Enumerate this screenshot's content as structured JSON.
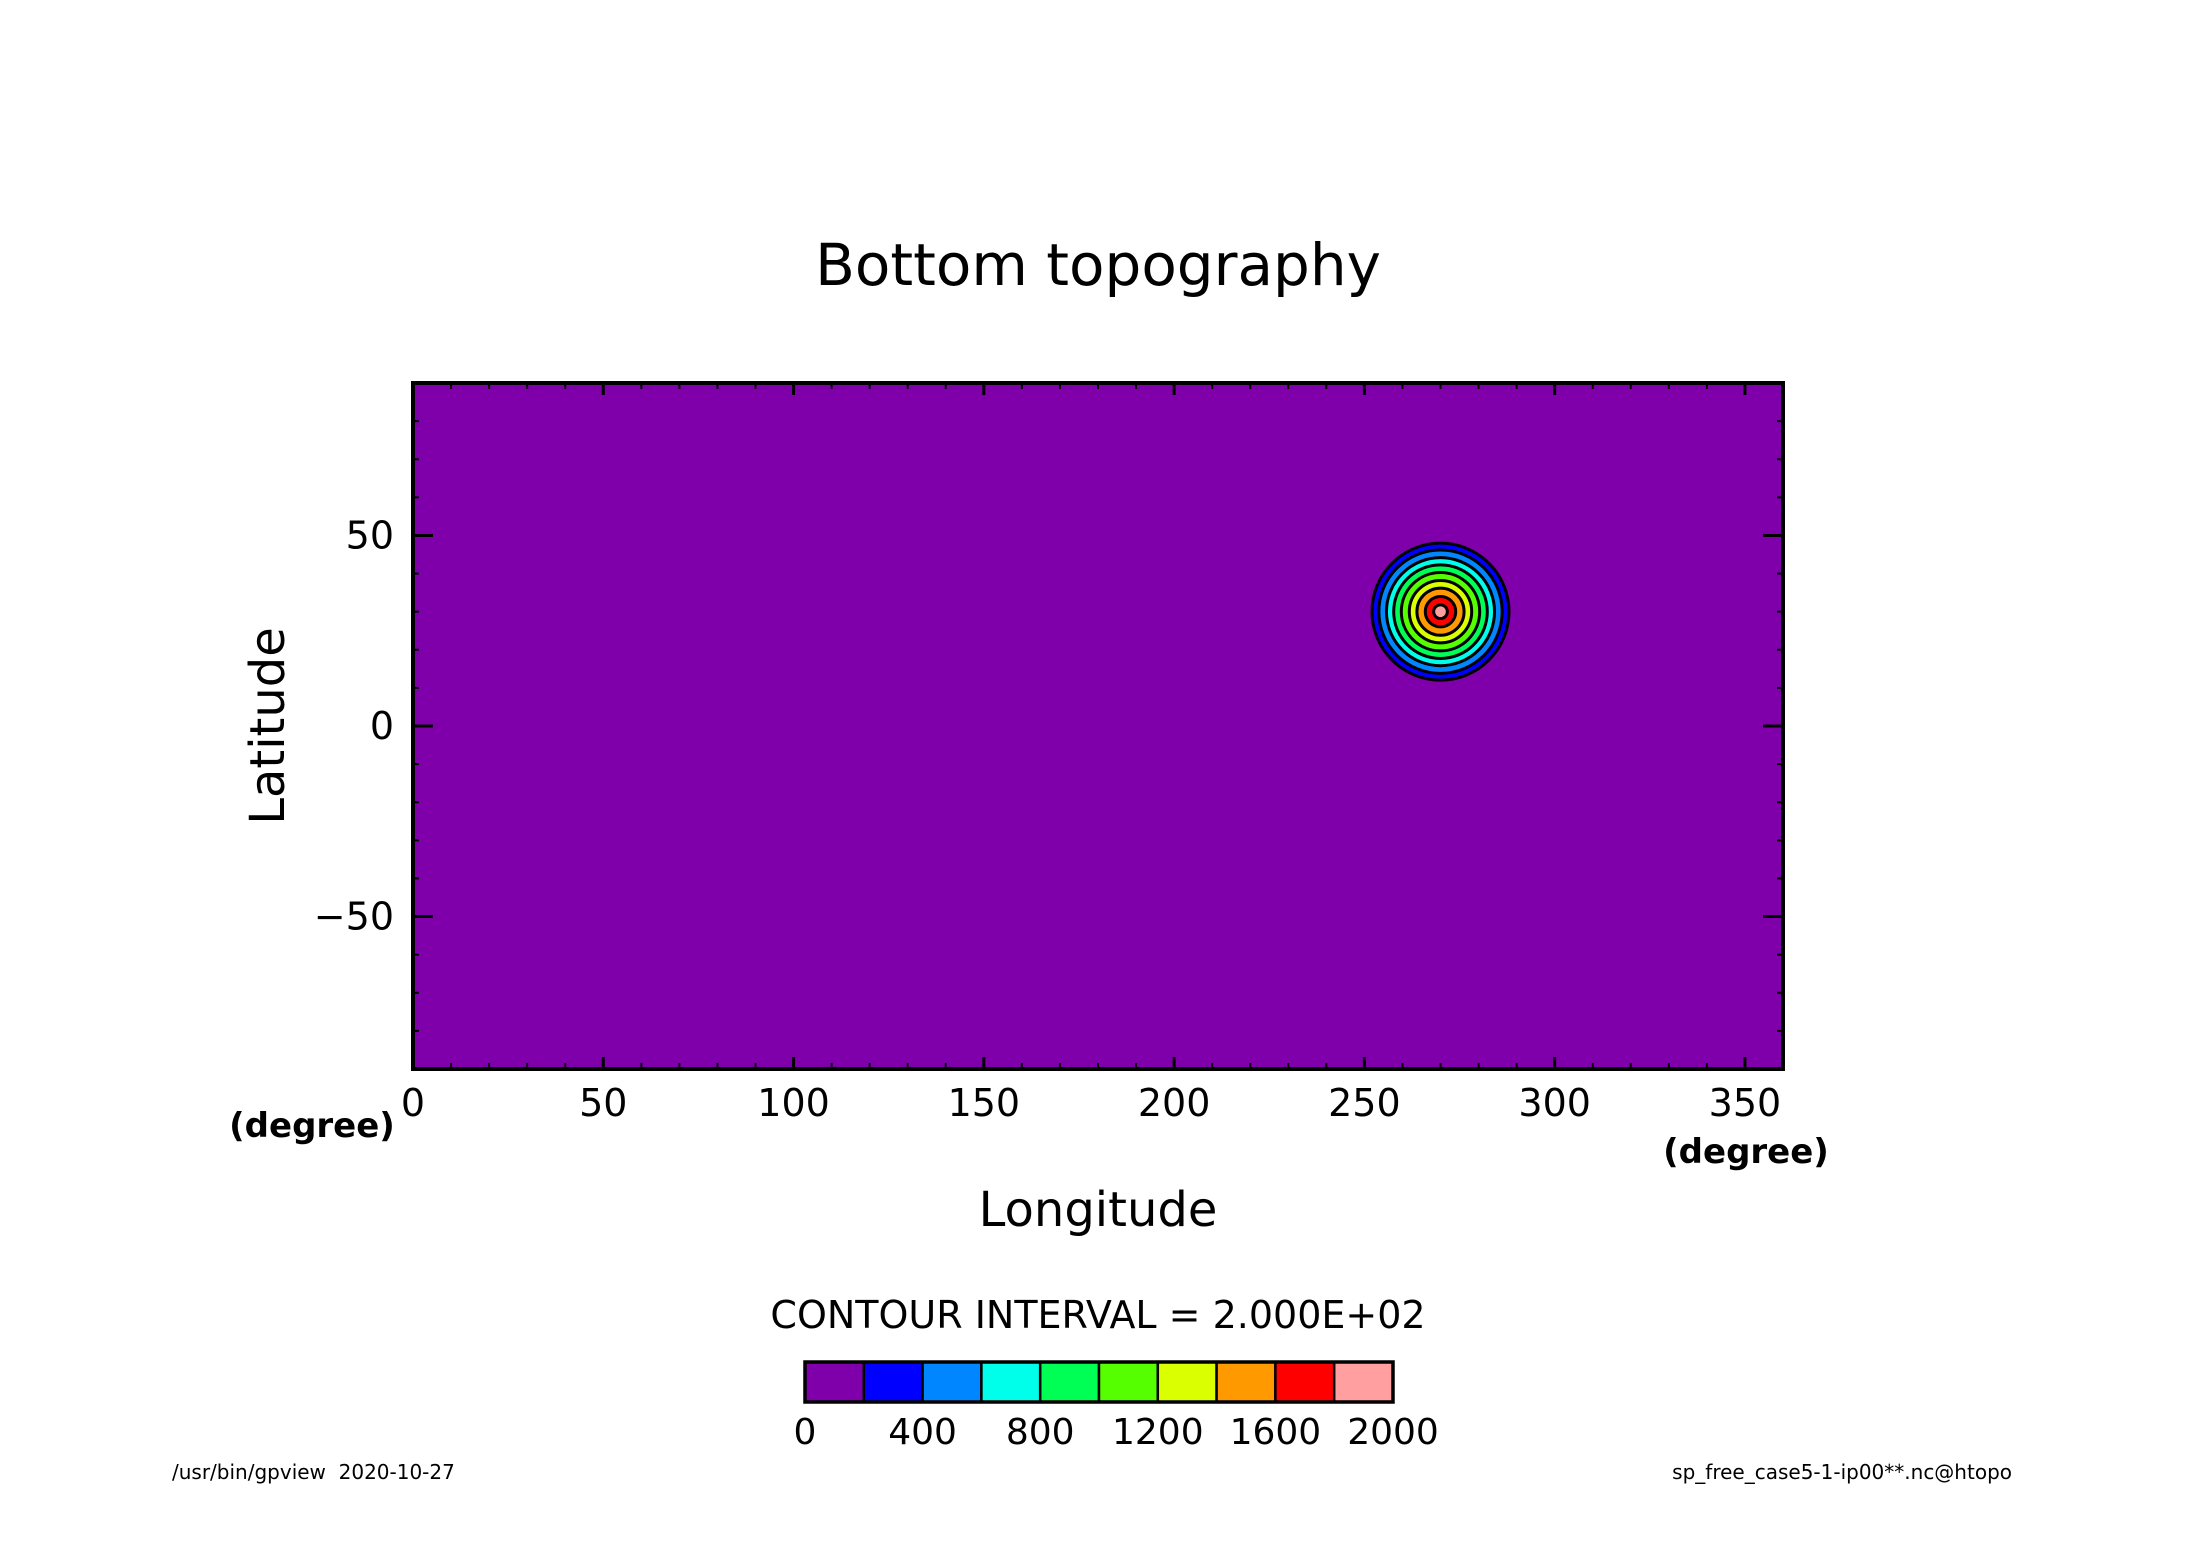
{
  "chart_data": {
    "type": "contour",
    "title": "Bottom topography",
    "xlabel": "Longitude",
    "ylabel": "Latitude",
    "xunit": "(degree)",
    "yunit": "(degree)",
    "xlim": [
      0,
      360
    ],
    "ylim": [
      -90,
      90
    ],
    "xticks": [
      0,
      50,
      100,
      150,
      200,
      250,
      300,
      350
    ],
    "xtick_labels": [
      "0",
      "50",
      "100",
      "150",
      "200",
      "250",
      "300",
      "350"
    ],
    "yticks": [
      -50,
      0,
      50
    ],
    "ytick_labels": [
      "−50",
      "0",
      "50"
    ],
    "background_color": "#7f00aa",
    "feature": {
      "center_lon": 270,
      "center_lat": 30,
      "peak_value": 2000,
      "contour_levels": [
        200,
        400,
        600,
        800,
        1000,
        1200,
        1400,
        1600,
        1800
      ],
      "contour_radii_deg": [
        18,
        16.2,
        14.2,
        12.3,
        10.3,
        8.2,
        6.2,
        4.0,
        1.8
      ]
    },
    "contour_interval_label": "CONTOUR INTERVAL = 2.000E+02",
    "colorbar": {
      "colors": [
        "#7f00aa",
        "#0000ff",
        "#0087ff",
        "#00ffea",
        "#00ff55",
        "#55ff00",
        "#d9ff00",
        "#ff9900",
        "#ff0000",
        "#ff9f9f"
      ],
      "tick_values": [
        0,
        400,
        800,
        1200,
        1600,
        2000
      ],
      "tick_labels": [
        "0",
        "400",
        "800",
        "1200",
        "1600",
        "2000"
      ]
    }
  },
  "footer": {
    "left": "/usr/bin/gpview  2020-10-27",
    "right": "sp_free_case5-1-ip00**.nc@htopo"
  }
}
